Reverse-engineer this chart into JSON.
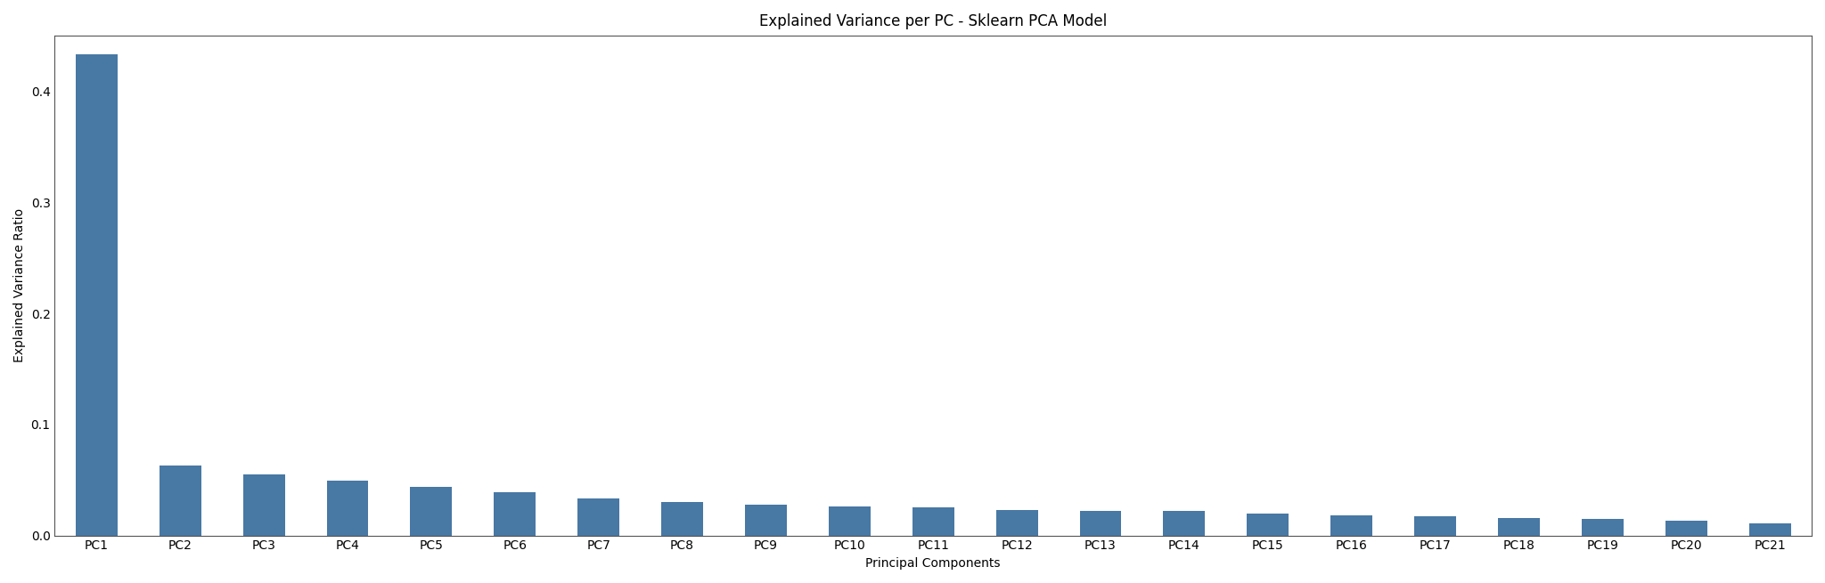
{
  "title": "Explained Variance per PC - Sklearn PCA Model",
  "xlabel": "Principal Components",
  "ylabel": "Explained Variance Ratio",
  "categories": [
    "PC1",
    "PC2",
    "PC3",
    "PC4",
    "PC5",
    "PC6",
    "PC7",
    "PC8",
    "PC9",
    "PC10",
    "PC11",
    "PC12",
    "PC13",
    "PC14",
    "PC15",
    "PC16",
    "PC17",
    "PC18",
    "PC19",
    "PC20",
    "PC21"
  ],
  "values": [
    0.433,
    0.063,
    0.055,
    0.049,
    0.044,
    0.039,
    0.033,
    0.03,
    0.028,
    0.026,
    0.025,
    0.023,
    0.022,
    0.022,
    0.02,
    0.018,
    0.017,
    0.016,
    0.015,
    0.013,
    0.011
  ],
  "bar_color": "#4878a4",
  "ylim": [
    0,
    0.45
  ],
  "yticks": [
    0.0,
    0.1,
    0.2,
    0.3,
    0.4
  ],
  "figsize": [
    20.48,
    6.55
  ],
  "dpi": 100,
  "title_fontsize": 12,
  "label_fontsize": 10,
  "tick_fontsize": 10,
  "bar_width": 0.5,
  "background_color": "#ffffff",
  "spine_color": "#555555"
}
